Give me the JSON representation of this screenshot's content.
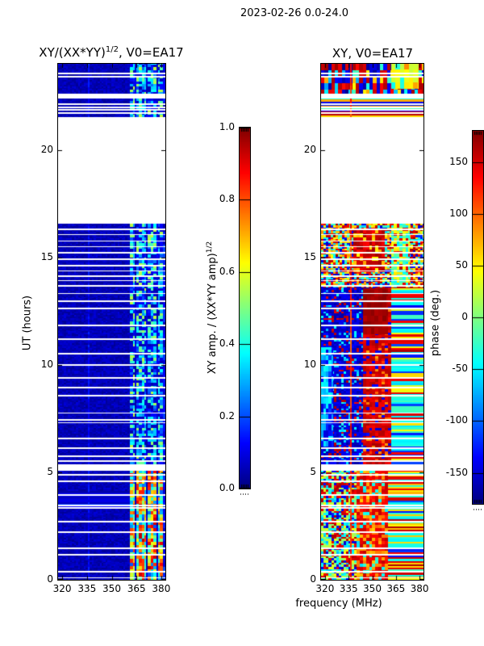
{
  "figure": {
    "suptitle": "2023-02-26 0.0-24.0",
    "background": "#ffffff",
    "text_color": "#000000"
  },
  "chart_data": {
    "type": "heatmap",
    "suptitle": "2023-02-26 0.0-24.0",
    "xlabel": "frequency (MHz)",
    "ylabel": "UT (hours)",
    "colormap": "jet",
    "x_range_mhz": [
      317.5,
      382.5
    ],
    "y_range_hours": [
      0,
      24
    ],
    "xticks": [
      320,
      335,
      350,
      365,
      380
    ],
    "yticks": [
      0,
      5,
      10,
      15,
      20
    ],
    "data_gaps_hours": [
      [
        16.55,
        21.52
      ],
      [
        5.08,
        5.38
      ],
      [
        23.5,
        23.57
      ],
      [
        23.38,
        23.45
      ],
      [
        22.38,
        22.62
      ],
      [
        22.08,
        22.15
      ],
      [
        21.95,
        22.02
      ],
      [
        21.82,
        21.89
      ],
      [
        21.68,
        21.75
      ],
      [
        16.28,
        16.34
      ],
      [
        16.02,
        16.08
      ],
      [
        15.73,
        15.79
      ],
      [
        15.47,
        15.53
      ],
      [
        15.18,
        15.24
      ],
      [
        14.88,
        14.94
      ],
      [
        14.58,
        14.64
      ],
      [
        14.33,
        14.4
      ],
      [
        14.08,
        14.15
      ],
      [
        13.88,
        13.94
      ],
      [
        13.63,
        13.7
      ],
      [
        13.28,
        13.34
      ],
      [
        12.93,
        12.99
      ],
      [
        12.59,
        12.66
      ],
      [
        11.81,
        11.88
      ],
      [
        11.17,
        11.24
      ],
      [
        10.49,
        10.56
      ],
      [
        9.97,
        10.04
      ],
      [
        9.35,
        9.41
      ],
      [
        8.91,
        8.98
      ],
      [
        8.53,
        8.6
      ],
      [
        7.72,
        7.79
      ],
      [
        7.41,
        7.47
      ],
      [
        7.27,
        7.33
      ],
      [
        6.54,
        6.61
      ],
      [
        6.1,
        6.16
      ],
      [
        5.72,
        5.79
      ],
      [
        5.5,
        5.57
      ],
      [
        4.85,
        4.92
      ],
      [
        4.55,
        4.62
      ],
      [
        3.91,
        3.98
      ],
      [
        3.43,
        3.5
      ],
      [
        3.31,
        3.37
      ],
      [
        2.67,
        2.74
      ],
      [
        2.17,
        2.24
      ],
      [
        1.43,
        1.49
      ],
      [
        1.14,
        1.21
      ],
      [
        0.35,
        0.42
      ],
      [
        0.06,
        0.1
      ]
    ],
    "panels": [
      {
        "id": "amp",
        "title_main": "XY/(XX*YY)",
        "title_sup": "1/2",
        "title_rest": ", V0=EA17",
        "quantity": "XY amp. / (XX*YY amp)^(1/2)",
        "vmin": 0,
        "vmax": 1,
        "zones": [
          {
            "t": [
              0,
              24
            ],
            "f": [
              317.5,
              382.5
            ],
            "cell": [
              1.2,
              0.07
            ],
            "levels": [
              [
                0.055,
                0.035,
                1
              ]
            ]
          },
          {
            "t": [
              3.3,
              4.15
            ],
            "f": [
              317.5,
              361
            ],
            "cell": [
              45,
              0.055
            ],
            "mode": "rows",
            "levels": [
              [
                0.09,
                0.05,
                3
              ],
              [
                0.19,
                0.07,
                1
              ]
            ]
          },
          {
            "t": [
              0,
              24
            ],
            "f": [
              335.7,
              336.7
            ],
            "cell": [
              1,
              0.12
            ],
            "levels": [
              [
                0.12,
                0.05,
                1
              ]
            ]
          },
          {
            "t": [
              5.38,
              24
            ],
            "f": [
              361,
              382.5
            ],
            "cell": [
              1.8,
              0.13
            ],
            "levels": [
              [
                0.1,
                0.06,
                3
              ],
              [
                0.28,
                0.1,
                3
              ],
              [
                0.45,
                0.12,
                3
              ],
              [
                0.06,
                0.03,
                1
              ]
            ]
          },
          {
            "t": [
              0,
              5.38
            ],
            "f": [
              361,
              382.5
            ],
            "cell": [
              1.8,
              0.16
            ],
            "levels": [
              [
                0.5,
                0.12,
                3
              ],
              [
                0.72,
                0.14,
                3
              ],
              [
                0.3,
                0.1,
                2
              ],
              [
                0.88,
                0.08,
                1
              ]
            ]
          },
          {
            "t": [
              0,
              24
            ],
            "f": [
              363.8,
              364.9
            ],
            "cell": [
              2,
              0.5
            ],
            "levels": [
              [
                0.07,
                0.04,
                1
              ]
            ]
          },
          {
            "t": [
              0,
              24
            ],
            "f": [
              370.8,
              371.9
            ],
            "cell": [
              2,
              0.5
            ],
            "levels": [
              [
                0.07,
                0.04,
                1
              ]
            ]
          },
          {
            "t": [
              0,
              24
            ],
            "f": [
              377.0,
              378.0
            ],
            "cell": [
              2,
              0.5
            ],
            "levels": [
              [
                0.08,
                0.05,
                1
              ]
            ]
          },
          {
            "t": [
              0,
              24
            ],
            "f": [
              381.2,
              382.5
            ],
            "cell": [
              2,
              0.3
            ],
            "levels": [
              [
                0.12,
                0.08,
                1
              ]
            ]
          }
        ]
      },
      {
        "id": "phase",
        "title_main": "XY, V0=EA17",
        "title_sup": "",
        "title_rest": "",
        "quantity": "phase (deg.)",
        "vmin": -180,
        "vmax": 180,
        "zones": [
          {
            "t": [
              0,
              24
            ],
            "f": [
              317.5,
              382.5
            ],
            "cell": [
              2.2,
              0.3
            ],
            "levels": [
              [
                -150,
                25,
                4
              ],
              [
                150,
                20,
                4
              ],
              [
                -50,
                30,
                2
              ],
              [
                60,
                25,
                1
              ]
            ]
          },
          {
            "t": [
              22.85,
              24
            ],
            "f": [
              362,
              379.5
            ],
            "cell": [
              2.8,
              0.3
            ],
            "levels": [
              [
                35,
                18,
                5
              ],
              [
                75,
                15,
                2
              ],
              [
                -40,
                15,
                1
              ]
            ]
          },
          {
            "t": [
              21.52,
              22.45
            ],
            "f": [
              317.5,
              382.5
            ],
            "cell": [
              70,
              0.09
            ],
            "mode": "rows",
            "levels": [
              [
                150,
                20,
                3
              ],
              [
                60,
                20,
                2
              ],
              [
                -30,
                25,
                2
              ],
              [
                -140,
                20,
                1
              ]
            ]
          },
          {
            "t": [
              13.6,
              16.55
            ],
            "f": [
              317.5,
              382.5
            ],
            "cell": [
              1.5,
              0.09
            ],
            "levels": [
              [
                150,
                25,
                3
              ],
              [
                60,
                25,
                3
              ],
              [
                -40,
                25,
                2
              ],
              [
                -140,
                25,
                2
              ]
            ]
          },
          {
            "t": [
              13.6,
              16.55
            ],
            "f": [
              362,
              374
            ],
            "cell": [
              1.8,
              0.12
            ],
            "levels": [
              [
                -30,
                25,
                3
              ],
              [
                40,
                20,
                2
              ],
              [
                150,
                15,
                1
              ]
            ]
          },
          {
            "t": [
              14.3,
              16.3
            ],
            "f": [
              338,
              358
            ],
            "cell": [
              2,
              0.18
            ],
            "levels": [
              [
                152,
                18,
                4
              ],
              [
                60,
                20,
                1
              ]
            ]
          },
          {
            "t": [
              5.38,
              13.6
            ],
            "f": [
              317.5,
              344
            ],
            "cell": [
              1.6,
              0.1
            ],
            "levels": [
              [
                -150,
                18,
                6
              ],
              [
                -60,
                25,
                1
              ],
              [
                150,
                15,
                1
              ]
            ]
          },
          {
            "t": [
              6.2,
              10.8
            ],
            "f": [
              317.5,
              325
            ],
            "cell": [
              1.6,
              0.25
            ],
            "levels": [
              [
                -60,
                20,
                3
              ],
              [
                -130,
                20,
                2
              ]
            ]
          },
          {
            "t": [
              5.38,
              13.6
            ],
            "f": [
              344,
              362
            ],
            "cell": [
              2,
              0.12
            ],
            "levels": [
              [
                152,
                15,
                6
              ],
              [
                95,
                20,
                1
              ],
              [
                -140,
                10,
                1
              ]
            ]
          },
          {
            "t": [
              11.4,
              13.55
            ],
            "f": [
              344,
              360
            ],
            "cell": [
              2.5,
              0.3
            ],
            "levels": [
              [
                168,
                8,
                1
              ]
            ]
          },
          {
            "t": [
              5.38,
              13.6
            ],
            "f": [
              362,
              382.5
            ],
            "cell": [
              45,
              0.09
            ],
            "mode": "rows",
            "levels": [
              [
                -40,
                20,
                4
              ],
              [
                -120,
                18,
                2
              ],
              [
                150,
                15,
                2
              ],
              [
                45,
                15,
                1
              ]
            ]
          },
          {
            "t": [
              0,
              5.38
            ],
            "f": [
              317.5,
              340
            ],
            "cell": [
              1.6,
              0.1
            ],
            "levels": [
              [
                20,
                25,
                3
              ],
              [
                -50,
                20,
                2
              ],
              [
                150,
                18,
                2
              ],
              [
                -140,
                15,
                1
              ]
            ]
          },
          {
            "t": [
              0,
              5.38
            ],
            "f": [
              340,
              360
            ],
            "cell": [
              2,
              0.15
            ],
            "levels": [
              [
                140,
                18,
                4
              ],
              [
                80,
                18,
                2
              ],
              [
                -40,
                18,
                1
              ]
            ]
          },
          {
            "t": [
              0,
              5.38
            ],
            "f": [
              360,
              382.5
            ],
            "cell": [
              45,
              0.08
            ],
            "mode": "rows",
            "levels": [
              [
                -40,
                18,
                3
              ],
              [
                150,
                14,
                2
              ],
              [
                60,
                15,
                2
              ],
              [
                -120,
                15,
                1
              ]
            ]
          },
          {
            "t": [
              0,
              24
            ],
            "f": [
              335.7,
              336.7
            ],
            "cell": [
              1.2,
              0.5
            ],
            "levels": [
              [
                120,
                25,
                1
              ]
            ]
          }
        ]
      }
    ],
    "colorbars": [
      {
        "id": "amp",
        "label_main": "XY amp. / (XX*YY amp)",
        "label_sup": "1/2",
        "ticks": [
          1.0,
          0.8,
          0.6,
          0.4,
          0.2,
          0.0
        ],
        "tick_labels": [
          "1.0",
          "0.8",
          "0.6",
          "0.4",
          "0.2",
          "0.0"
        ],
        "vmin": 0,
        "vmax": 1
      },
      {
        "id": "phase",
        "label_main": "phase (deg.)",
        "label_sup": "",
        "ticks": [
          150,
          100,
          50,
          0,
          -50,
          -100,
          -150
        ],
        "tick_labels": [
          "150",
          "100",
          "50",
          "0",
          "-50",
          "-100",
          "-150"
        ],
        "vmin": -180,
        "vmax": 180
      }
    ]
  }
}
